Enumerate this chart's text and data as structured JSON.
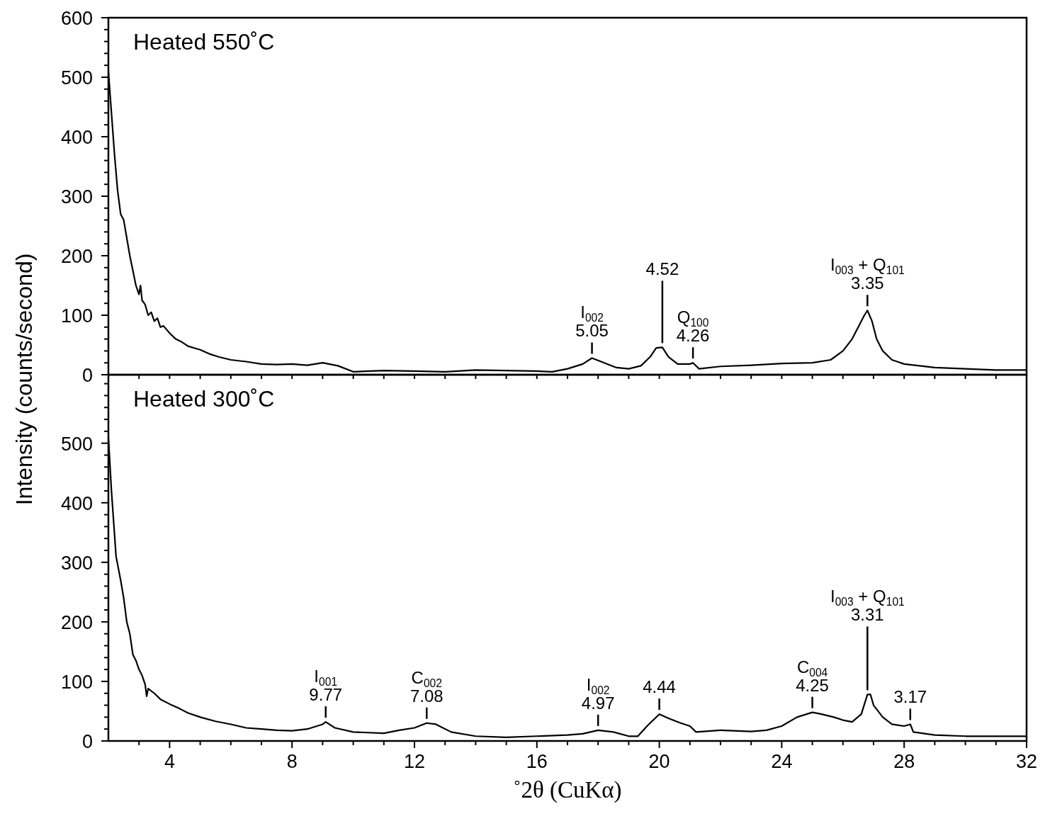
{
  "chart_data": [
    {
      "type": "line",
      "ylabel": "Intensity (counts/second)",
      "tick_labels": "y",
      "grid": false,
      "marker": "none",
      "line_style": "solid",
      "xlim": [
        2,
        32
      ],
      "ylim": [
        0,
        600
      ],
      "xticks": [
        {
          "value": 3,
          "label": null
        },
        {
          "value": 4,
          "label": null
        },
        {
          "value": 5,
          "label": null
        },
        {
          "value": 6,
          "label": null
        },
        {
          "value": 7,
          "label": null
        },
        {
          "value": 8,
          "label": null
        },
        {
          "value": 9,
          "label": null
        },
        {
          "value": 10,
          "label": null
        },
        {
          "value": 11,
          "label": null
        },
        {
          "value": 12,
          "label": null
        },
        {
          "value": 13,
          "label": null
        },
        {
          "value": 14,
          "label": null
        },
        {
          "value": 15,
          "label": null
        },
        {
          "value": 16,
          "label": null
        },
        {
          "value": 17,
          "label": null
        },
        {
          "value": 18,
          "label": null
        },
        {
          "value": 19,
          "label": null
        },
        {
          "value": 20,
          "label": null
        },
        {
          "value": 21,
          "label": null
        },
        {
          "value": 22,
          "label": null
        },
        {
          "value": 23,
          "label": null
        },
        {
          "value": 24,
          "label": null
        },
        {
          "value": 25,
          "label": null
        },
        {
          "value": 26,
          "label": null
        },
        {
          "value": 27,
          "label": null
        },
        {
          "value": 28,
          "label": null
        },
        {
          "value": 29,
          "label": null
        },
        {
          "value": 30,
          "label": null
        },
        {
          "value": 31,
          "label": null
        },
        {
          "value": 32,
          "label": null
        }
      ],
      "yticks": [
        0,
        {
          "value": 20,
          "label": null
        },
        {
          "value": 40,
          "label": null
        },
        {
          "value": 60,
          "label": null
        },
        {
          "value": 80,
          "label": null
        },
        100,
        {
          "value": 120,
          "label": null
        },
        {
          "value": 140,
          "label": null
        },
        {
          "value": 160,
          "label": null
        },
        {
          "value": 180,
          "label": null
        },
        200,
        {
          "value": 220,
          "label": null
        },
        {
          "value": 240,
          "label": null
        },
        {
          "value": 260,
          "label": null
        },
        {
          "value": 280,
          "label": null
        },
        300,
        {
          "value": 320,
          "label": null
        },
        {
          "value": 340,
          "label": null
        },
        {
          "value": 360,
          "label": null
        },
        {
          "value": 380,
          "label": null
        },
        400,
        {
          "value": 420,
          "label": null
        },
        {
          "value": 440,
          "label": null
        },
        {
          "value": 460,
          "label": null
        },
        {
          "value": 480,
          "label": null
        },
        500,
        {
          "value": 520,
          "label": null
        },
        {
          "value": 540,
          "label": null
        },
        {
          "value": 560,
          "label": null
        },
        {
          "value": 580,
          "label": null
        },
        600
      ],
      "series": [
        {
          "color": "#000000",
          "x": [
            2.0,
            2.1,
            2.2,
            2.3,
            2.4,
            2.5,
            2.6,
            2.7,
            2.8,
            2.9,
            3.0,
            3.05,
            3.1,
            3.2,
            3.3,
            3.4,
            3.5,
            3.6,
            3.7,
            3.8,
            4.0,
            4.2,
            4.4,
            4.6,
            4.8,
            5.0,
            5.3,
            5.6,
            6.0,
            6.5,
            7.0,
            7.5,
            8.0,
            8.5,
            9.0,
            9.5,
            10.0,
            11.0,
            12.0,
            13.0,
            14.0,
            15.0,
            16.0,
            16.5,
            17.0,
            17.5,
            17.8,
            18.2,
            18.6,
            19.0,
            19.4,
            19.7,
            19.9,
            20.1,
            20.3,
            20.6,
            21.0,
            21.1,
            21.3,
            22.0,
            23.0,
            24.0,
            25.0,
            25.6,
            26.0,
            26.3,
            26.5,
            26.7,
            26.8,
            26.95,
            27.1,
            27.3,
            27.6,
            28.0,
            29.0,
            30.0,
            31.0,
            32.0
          ],
          "values": [
            510,
            440,
            370,
            310,
            270,
            260,
            230,
            200,
            175,
            150,
            135,
            150,
            125,
            118,
            100,
            105,
            90,
            95,
            80,
            82,
            70,
            60,
            55,
            48,
            45,
            42,
            35,
            30,
            25,
            22,
            18,
            17,
            18,
            16,
            20,
            15,
            5,
            7,
            6,
            5,
            8,
            7,
            6,
            5,
            10,
            18,
            28,
            20,
            12,
            10,
            15,
            30,
            45,
            46,
            30,
            18,
            18,
            20,
            10,
            14,
            16,
            19,
            20,
            25,
            40,
            60,
            80,
            100,
            108,
            90,
            60,
            40,
            25,
            18,
            12,
            10,
            8,
            8
          ]
        }
      ],
      "annotations": [
        "Heated 550˚C",
        {
          "text": "I$_{002}$\n5.05",
          "x": 17.8,
          "y": 28
        },
        {
          "text": "4.52",
          "x": 20.1,
          "y": 46
        },
        {
          "text": "Q$_{100}$\n4.26",
          "x": 21.1,
          "y": 20
        },
        {
          "text": "I$_{003}$ + Q$_{101}$\n3.35",
          "x": 26.8,
          "y": 108
        }
      ]
    },
    {
      "type": "line",
      "xlabel": "˚2θ (CuKα)",
      "grid": false,
      "marker": "none",
      "line_style": "solid",
      "xlim": [
        2,
        32
      ],
      "ylim": [
        0,
        615
      ],
      "xticks": [
        {
          "value": 3,
          "label": null
        },
        4,
        {
          "value": 5,
          "label": null
        },
        {
          "value": 6,
          "label": null
        },
        {
          "value": 7,
          "label": null
        },
        8,
        {
          "value": 9,
          "label": null
        },
        {
          "value": 10,
          "label": null
        },
        {
          "value": 11,
          "label": null
        },
        12,
        {
          "value": 13,
          "label": null
        },
        {
          "value": 14,
          "label": null
        },
        {
          "value": 15,
          "label": null
        },
        16,
        {
          "value": 17,
          "label": null
        },
        {
          "value": 18,
          "label": null
        },
        {
          "value": 19,
          "label": null
        },
        20,
        {
          "value": 21,
          "label": null
        },
        {
          "value": 22,
          "label": null
        },
        {
          "value": 23,
          "label": null
        },
        24,
        {
          "value": 25,
          "label": null
        },
        {
          "value": 26,
          "label": null
        },
        {
          "value": 27,
          "label": null
        },
        28,
        {
          "value": 29,
          "label": null
        },
        {
          "value": 30,
          "label": null
        },
        {
          "value": 31,
          "label": null
        },
        32
      ],
      "yticks": [
        0,
        {
          "value": 20,
          "label": null
        },
        {
          "value": 40,
          "label": null
        },
        {
          "value": 60,
          "label": null
        },
        {
          "value": 80,
          "label": null
        },
        100,
        {
          "value": 120,
          "label": null
        },
        {
          "value": 140,
          "label": null
        },
        {
          "value": 160,
          "label": null
        },
        {
          "value": 180,
          "label": null
        },
        200,
        {
          "value": 220,
          "label": null
        },
        {
          "value": 240,
          "label": null
        },
        {
          "value": 260,
          "label": null
        },
        {
          "value": 280,
          "label": null
        },
        300,
        {
          "value": 320,
          "label": null
        },
        {
          "value": 340,
          "label": null
        },
        {
          "value": 360,
          "label": null
        },
        {
          "value": 380,
          "label": null
        },
        400,
        {
          "value": 420,
          "label": null
        },
        {
          "value": 440,
          "label": null
        },
        {
          "value": 460,
          "label": null
        },
        {
          "value": 480,
          "label": null
        },
        500,
        {
          "value": 520,
          "label": null
        },
        {
          "value": 540,
          "label": null
        },
        {
          "value": 560,
          "label": null
        },
        {
          "value": 580,
          "label": null
        },
        {
          "value": 600,
          "label": null
        }
      ],
      "series": [
        {
          "color": "#000000",
          "x": [
            2.0,
            2.1,
            2.25,
            2.4,
            2.5,
            2.6,
            2.7,
            2.8,
            2.9,
            3.0,
            3.1,
            3.2,
            3.25,
            3.3,
            3.5,
            3.7,
            4.0,
            4.3,
            4.6,
            5.0,
            5.5,
            6.0,
            6.5,
            7.0,
            7.5,
            8.0,
            8.5,
            9.0,
            9.1,
            9.4,
            10.0,
            11.0,
            11.5,
            12.0,
            12.4,
            12.7,
            13.2,
            14.0,
            15.0,
            16.0,
            17.0,
            17.5,
            18.0,
            18.5,
            19.0,
            19.3,
            19.6,
            20.0,
            20.3,
            20.7,
            21.0,
            21.2,
            22.0,
            23.0,
            23.5,
            24.0,
            24.5,
            25.0,
            25.3,
            25.7,
            26.0,
            26.3,
            26.6,
            26.8,
            26.9,
            27.0,
            27.3,
            27.6,
            28.0,
            28.2,
            28.3,
            29.0,
            30.0,
            31.0,
            32.0
          ],
          "values": [
            510,
            420,
            310,
            270,
            240,
            200,
            180,
            145,
            135,
            120,
            110,
            95,
            75,
            88,
            80,
            70,
            62,
            55,
            47,
            40,
            33,
            28,
            22,
            20,
            18,
            17,
            20,
            28,
            32,
            22,
            15,
            13,
            18,
            22,
            30,
            28,
            15,
            8,
            6,
            8,
            10,
            12,
            18,
            15,
            8,
            8,
            25,
            45,
            38,
            30,
            25,
            15,
            18,
            16,
            18,
            25,
            40,
            48,
            45,
            40,
            35,
            32,
            45,
            78,
            78,
            60,
            40,
            28,
            25,
            28,
            15,
            10,
            8,
            8,
            8
          ]
        }
      ],
      "annotations": [
        "Heated 300˚C",
        {
          "text": "I$_{001}$\n9.77",
          "x": 9.1,
          "y": 32
        },
        {
          "text": "C$_{002}$\n7.08",
          "x": 12.4,
          "y": 30
        },
        {
          "text": "I$_{002}$\n4.97",
          "x": 18.0,
          "y": 18
        },
        {
          "text": "4.44",
          "x": 20.0,
          "y": 45
        },
        {
          "text": "C$_{004}$\n4.25",
          "x": 25.0,
          "y": 48
        },
        {
          "text": "I$_{003}$ + Q$_{101}$\n3.31",
          "x": 26.8,
          "y": 78
        },
        {
          "text": "3.17",
          "x": 28.2,
          "y": 28
        }
      ]
    }
  ]
}
